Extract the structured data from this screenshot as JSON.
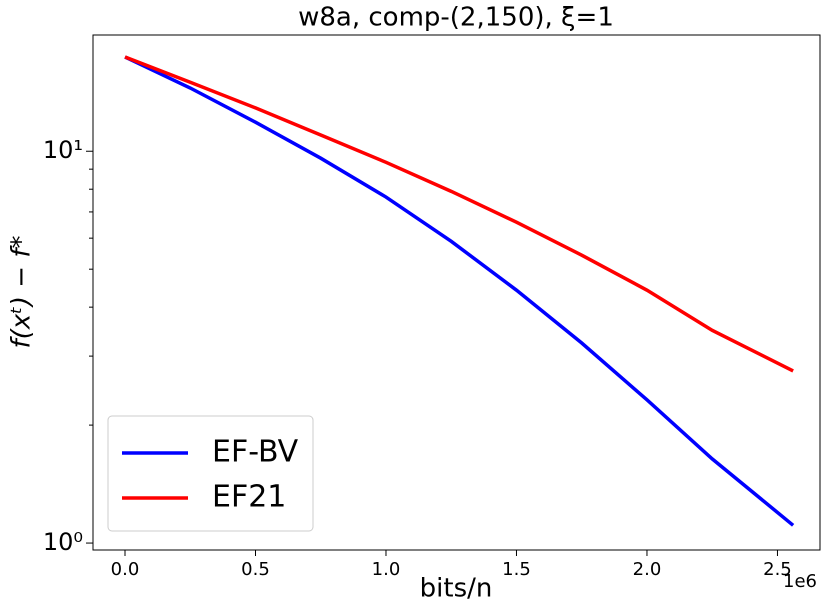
{
  "chart_data": {
    "type": "line",
    "title": "w8a, comp-(2,150), ξ=1",
    "x_label": "bits/n",
    "y_label": "f(xᵗ) − f*",
    "x_offset_label": "1e6",
    "x": [
      0,
      250000,
      500000,
      750000,
      1000000,
      1250000,
      1500000,
      1750000,
      2000000,
      2250000,
      2560000
    ],
    "series": [
      {
        "name": "EF-BV",
        "color": "#0000ff",
        "values": [
          17.4,
          14.5,
          11.86,
          9.6,
          7.64,
          5.89,
          4.42,
          3.24,
          2.32,
          1.64,
          1.11
        ]
      },
      {
        "name": "EF21",
        "color": "#ff0000",
        "values": [
          17.4,
          15.0,
          12.9,
          11.0,
          9.37,
          7.9,
          6.59,
          5.43,
          4.42,
          3.49,
          2.75
        ]
      }
    ],
    "xlim": [
      -122600,
      2663000
    ],
    "xticks": [
      {
        "value": 0,
        "label": "0.0"
      },
      {
        "value": 500000,
        "label": "0.5"
      },
      {
        "value": 1000000,
        "label": "1.0"
      },
      {
        "value": 1500000,
        "label": "1.5"
      },
      {
        "value": 2000000,
        "label": "2.0"
      },
      {
        "value": 2500000,
        "label": "2.5"
      }
    ],
    "ylim": [
      0.96,
      19.8
    ],
    "y_log_scale": true,
    "yticks": [
      {
        "value": 1,
        "label": "10⁰"
      },
      {
        "value": 10,
        "label": "10¹"
      }
    ],
    "y_minor_ticks": [
      2,
      3,
      4,
      5,
      6,
      7,
      8,
      9
    ],
    "legend_position": "lower left"
  }
}
